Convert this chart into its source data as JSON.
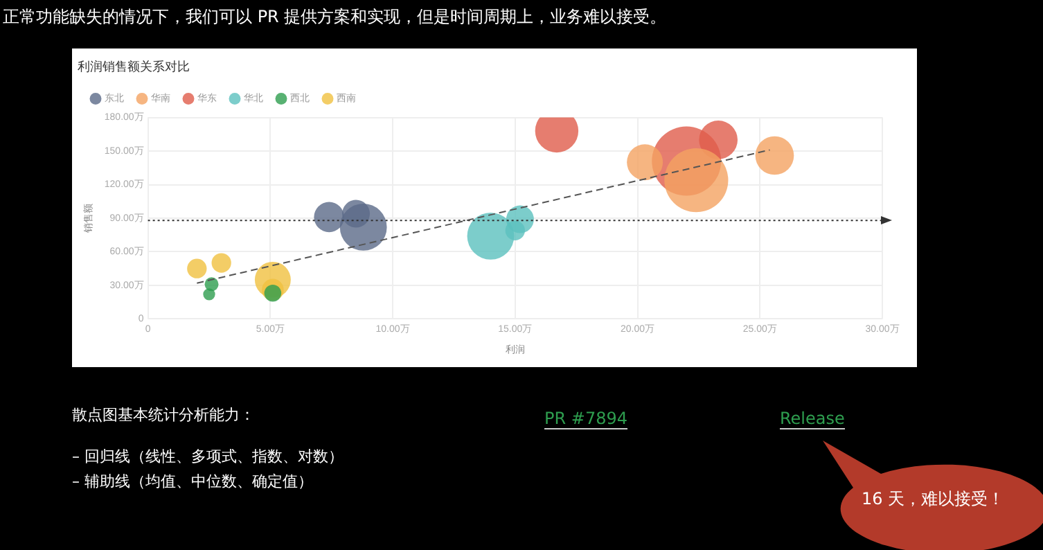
{
  "chart_data": {
    "type": "bubble",
    "title": "利润销售额关系对比",
    "xlabel": "利润",
    "ylabel": "销售额",
    "series": [
      {
        "name": "东北",
        "color": "#5b6a88",
        "x": [
          7.4,
          8.5,
          8.8
        ],
        "values": [
          91,
          94,
          82
        ],
        "sizes": [
          0.19,
          0.16,
          0.46
        ]
      },
      {
        "name": "华南",
        "color": "#f4a261",
        "x": [
          20.3,
          22.4,
          25.6
        ],
        "values": [
          140,
          124,
          146
        ],
        "sizes": [
          0.27,
          0.85,
          0.31
        ]
      },
      {
        "name": "华东",
        "color": "#e05c4b",
        "x": [
          16.7,
          22.0,
          23.3
        ],
        "values": [
          168,
          141,
          160
        ],
        "sizes": [
          0.39,
          1,
          0.31
        ]
      },
      {
        "name": "华北",
        "color": "#5bc0be",
        "x": [
          14.0,
          15.2,
          15.0
        ],
        "values": [
          74,
          89,
          79
        ],
        "sizes": [
          0.46,
          0.16,
          0.08
        ]
      },
      {
        "name": "西北",
        "color": "#2e9e4f",
        "x": [
          2.6,
          2.5,
          5.1
        ],
        "values": [
          31,
          22,
          23
        ],
        "sizes": [
          0.04,
          0.03,
          0.06
        ]
      },
      {
        "name": "西南",
        "color": "#f0c040",
        "x": [
          2.0,
          3.0,
          5.1,
          5.1
        ],
        "values": [
          45,
          50,
          35,
          26
        ],
        "sizes": [
          0.08,
          0.08,
          0.27,
          0.1
        ]
      },
      {
        "type": "line",
        "color": "#555555",
        "line_style": "dashed",
        "x": [
          2.0,
          25.4
        ],
        "values": [
          32,
          151
        ]
      }
    ],
    "xlim": [
      0,
      30
    ],
    "xticks": [
      0,
      {
        "value": 5,
        "label": "5.00万"
      },
      {
        "value": 10,
        "label": "10.00万"
      },
      {
        "value": 15,
        "label": "15.00万"
      },
      {
        "value": 20,
        "label": "20.00万"
      },
      {
        "value": 25,
        "label": "25.00万"
      },
      {
        "value": 30,
        "label": "30.00万"
      }
    ],
    "ylim": [
      0,
      180
    ],
    "yticks": [
      0,
      {
        "value": 30,
        "label": "30.00万"
      },
      {
        "value": 60,
        "label": "60.00万"
      },
      {
        "value": 90,
        "label": "90.00万"
      },
      {
        "value": 120,
        "label": "120.00万"
      },
      {
        "value": 150,
        "label": "150.00万"
      },
      {
        "value": 180,
        "label": "180.00万"
      }
    ],
    "ref_lines": [
      {
        "axis": "y",
        "value": 88,
        "color": "#333333",
        "line_style": "dotted"
      }
    ],
    "grid": true,
    "legend": "top left",
    "annotations": [
      "正常功能缺失的情况下，我们可以 PR 提供方案和实现，但是时间周期上，业务难以接受。",
      "散点图基本统计分析能力：",
      "– 回归线（线性、多项式、指数、对数）",
      "– 辅助线（均值、中位数、确定值）",
      "PR #7894",
      "Release",
      "16 天，难以接受！"
    ]
  }
}
